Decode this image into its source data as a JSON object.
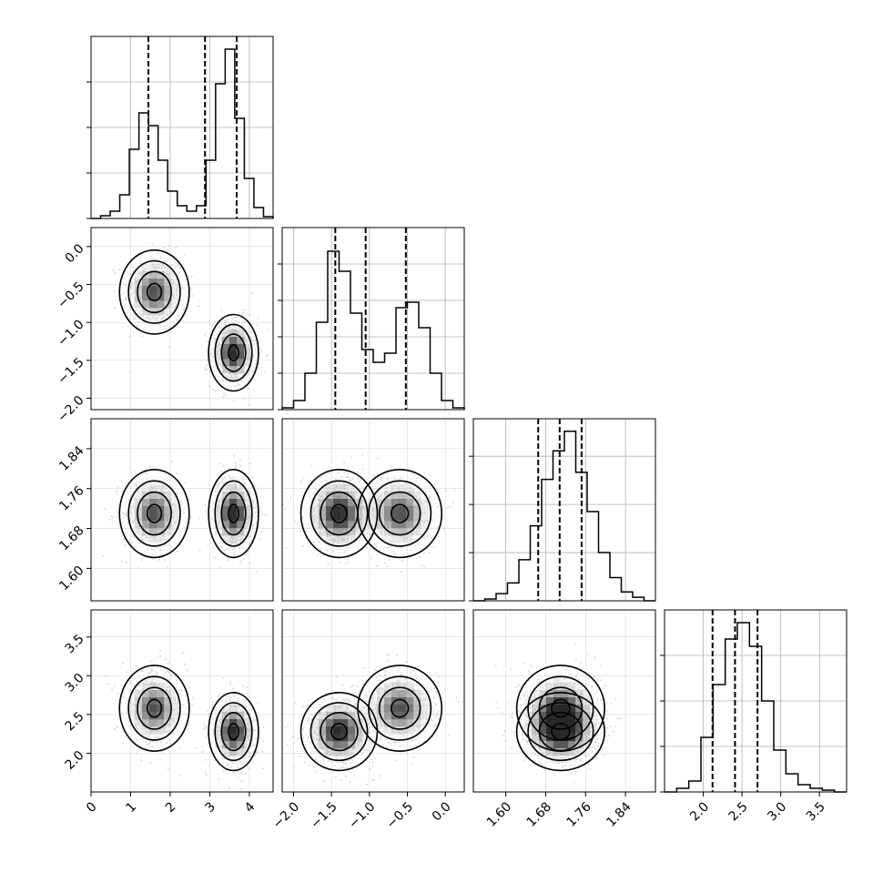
{
  "chart_data": {
    "type": "corner",
    "grid": true,
    "params": [
      {
        "range": [
          0,
          4.6
        ],
        "ticks": [
          0,
          1,
          2,
          3,
          4
        ],
        "tick_labels": [
          "0",
          "1",
          "2",
          "3",
          "4"
        ],
        "quantiles": [
          1.45,
          2.88,
          3.68
        ],
        "hist": [
          0.0,
          0.015,
          0.04,
          0.13,
          0.38,
          0.58,
          0.51,
          0.32,
          0.15,
          0.07,
          0.04,
          0.07,
          0.32,
          0.74,
          0.93,
          0.55,
          0.22,
          0.06,
          0.01
        ],
        "hist_y_range": [
          0,
          1.0
        ],
        "hist_yticks": [
          0,
          0.25,
          0.5,
          0.75
        ]
      },
      {
        "range": [
          -2.15,
          0.25
        ],
        "ticks": [
          -2.0,
          -1.5,
          -1.0,
          -0.5,
          0.0
        ],
        "tick_labels": [
          "−2.0",
          "−1.5",
          "−1.0",
          "−0.5",
          "0.0"
        ],
        "quantiles": [
          -1.45,
          -1.05,
          -0.52
        ],
        "hist": [
          0.01,
          0.05,
          0.2,
          0.48,
          0.87,
          0.76,
          0.53,
          0.33,
          0.26,
          0.31,
          0.56,
          0.59,
          0.45,
          0.2,
          0.05,
          0.01
        ],
        "hist_y_range": [
          0,
          1.0
        ],
        "hist_yticks": [
          0,
          0.2,
          0.4,
          0.6,
          0.8
        ]
      },
      {
        "range": [
          1.535,
          1.9
        ],
        "ticks": [
          1.6,
          1.68,
          1.76,
          1.84
        ],
        "tick_labels": [
          "1.60",
          "1.68",
          "1.76",
          "1.84"
        ],
        "quantiles": [
          1.665,
          1.708,
          1.752
        ],
        "hist": [
          0.0,
          0.01,
          0.04,
          0.1,
          0.23,
          0.42,
          0.68,
          0.84,
          0.95,
          0.72,
          0.5,
          0.27,
          0.13,
          0.05,
          0.02,
          0.0
        ],
        "hist_y_range": [
          0,
          1.02
        ],
        "hist_yticks": [
          0,
          0.27,
          0.54,
          0.81
        ]
      },
      {
        "range": [
          1.5,
          3.85
        ],
        "ticks": [
          2.0,
          2.5,
          3.0,
          3.5
        ],
        "tick_labels": [
          "2.0",
          "2.5",
          "3.0",
          "3.5"
        ],
        "quantiles": [
          2.12,
          2.41,
          2.7
        ],
        "hist": [
          0.0,
          0.02,
          0.06,
          0.3,
          0.59,
          0.84,
          0.93,
          0.8,
          0.5,
          0.23,
          0.1,
          0.04,
          0.02,
          0.01,
          0.0
        ],
        "hist_y_range": [
          0,
          1.0
        ],
        "hist_yticks": [
          0,
          0.25,
          0.5,
          0.75
        ]
      }
    ],
    "clusters": [
      {
        "weight": 0.45,
        "mean": [
          1.6,
          -0.6,
          1.71,
          2.58
        ],
        "sd": [
          0.35,
          0.22,
          0.035,
          0.22
        ]
      },
      {
        "weight": 0.55,
        "mean": [
          3.6,
          -1.4,
          1.71,
          2.28
        ],
        "sd": [
          0.25,
          0.2,
          0.035,
          0.2
        ]
      }
    ],
    "contour_levels": [
      0.9,
      0.55,
      0.25,
      0.08
    ],
    "colors": {
      "line": "#000000",
      "grid": "#b0b0b0",
      "scatter": "#bdbdbd"
    }
  }
}
